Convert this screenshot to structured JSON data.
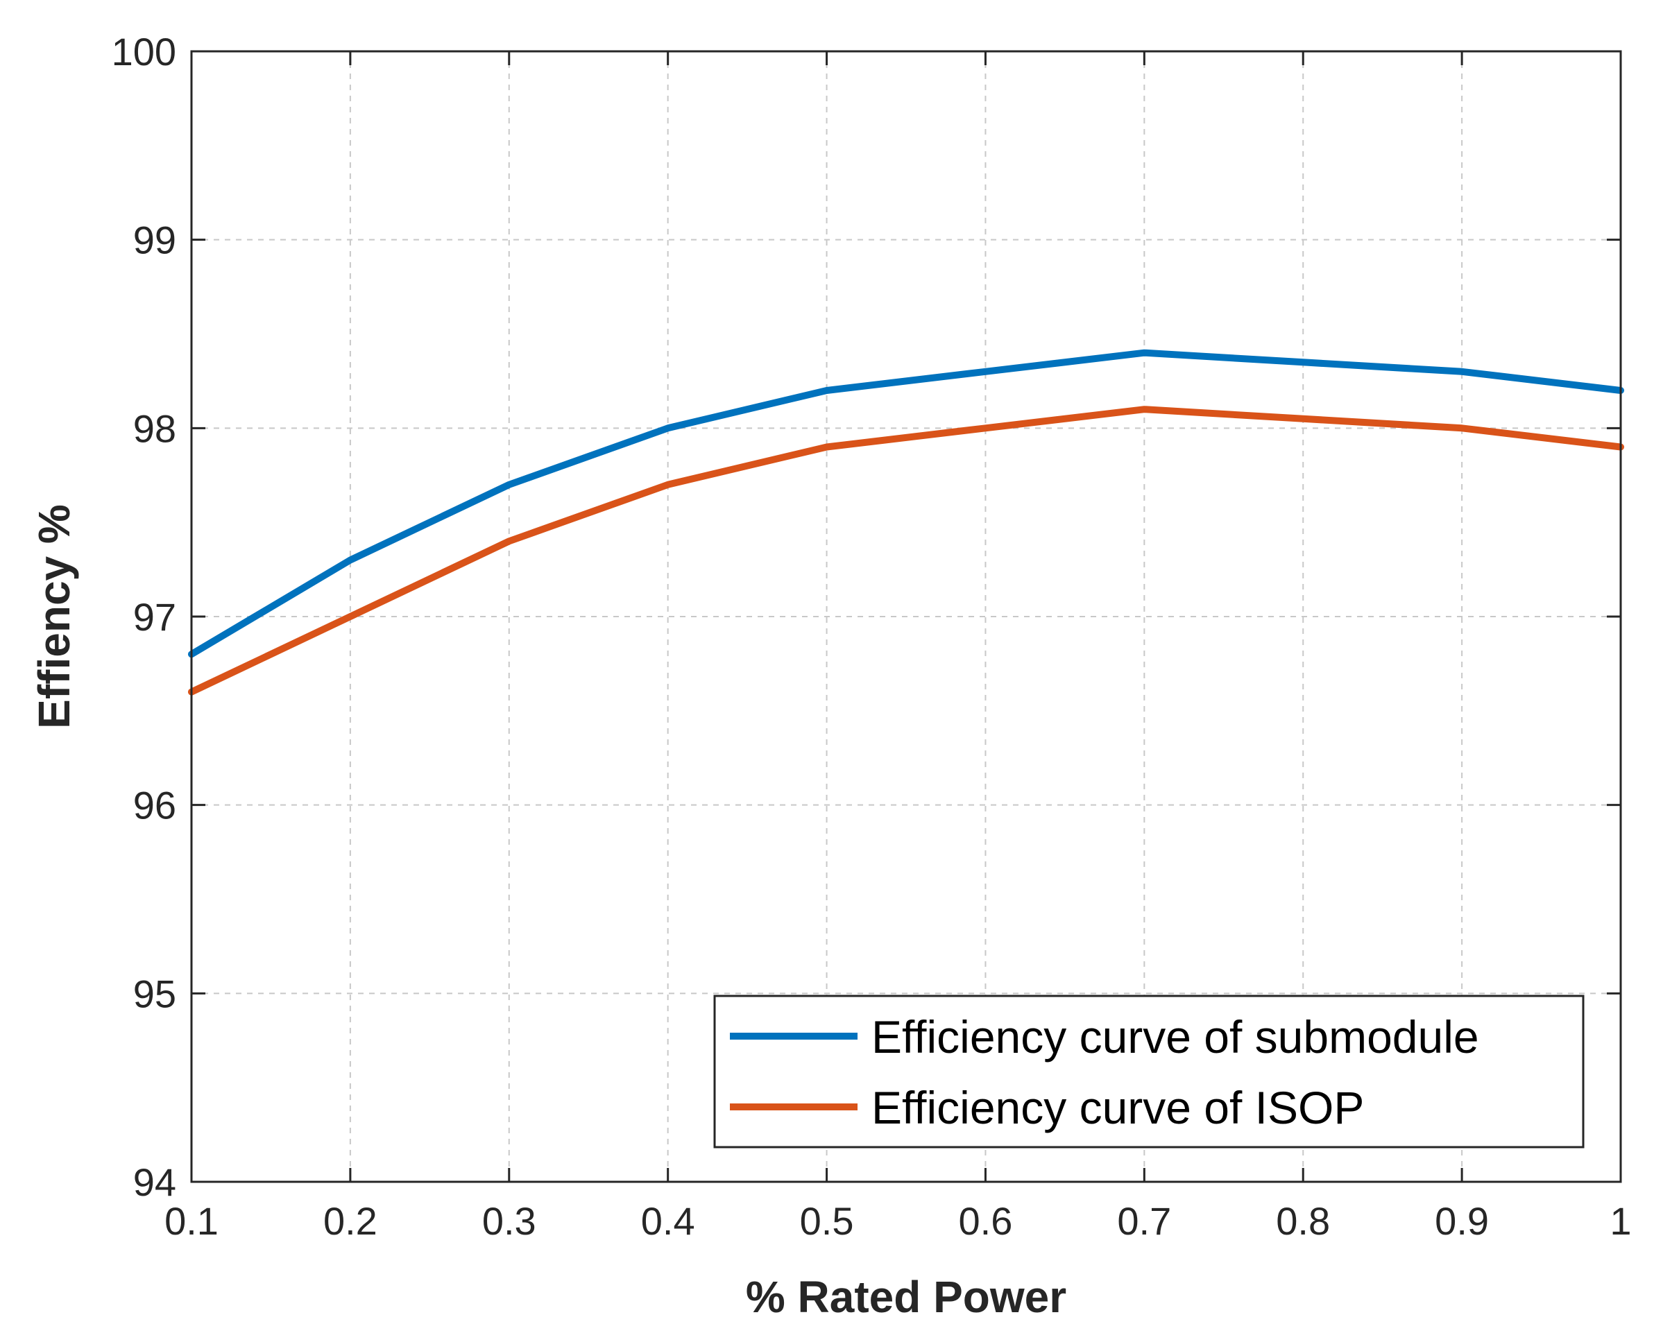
{
  "chart_data": {
    "type": "line",
    "title": "",
    "xlabel": "% Rated Power",
    "ylabel": "Effiency %",
    "xlim": [
      0.1,
      1
    ],
    "ylim": [
      94,
      100
    ],
    "grid": true,
    "legend_position": "bottom-right",
    "x_ticks": [
      0.1,
      0.2,
      0.3,
      0.4,
      0.5,
      0.6,
      0.7,
      0.8,
      0.9,
      1
    ],
    "x_tick_labels": [
      "0.1",
      "0.2",
      "0.3",
      "0.4",
      "0.5",
      "0.6",
      "0.7",
      "0.8",
      "0.9",
      "1"
    ],
    "y_ticks": [
      94,
      95,
      96,
      97,
      98,
      99,
      100
    ],
    "y_tick_labels": [
      "94",
      "95",
      "96",
      "97",
      "98",
      "99",
      "100"
    ],
    "x": [
      0.1,
      0.2,
      0.3,
      0.4,
      0.5,
      0.6,
      0.7,
      0.8,
      0.9,
      1.0
    ],
    "series": [
      {
        "name": "Efficiency curve of submodule",
        "color": "#0072BD",
        "values": [
          96.8,
          97.3,
          97.7,
          98.0,
          98.2,
          98.3,
          98.4,
          98.35,
          98.3,
          98.2
        ]
      },
      {
        "name": "Efficiency curve of ISOP",
        "color": "#D95319",
        "values": [
          96.6,
          97.0,
          97.4,
          97.7,
          97.9,
          98.0,
          98.1,
          98.05,
          98.0,
          97.9
        ]
      }
    ]
  }
}
